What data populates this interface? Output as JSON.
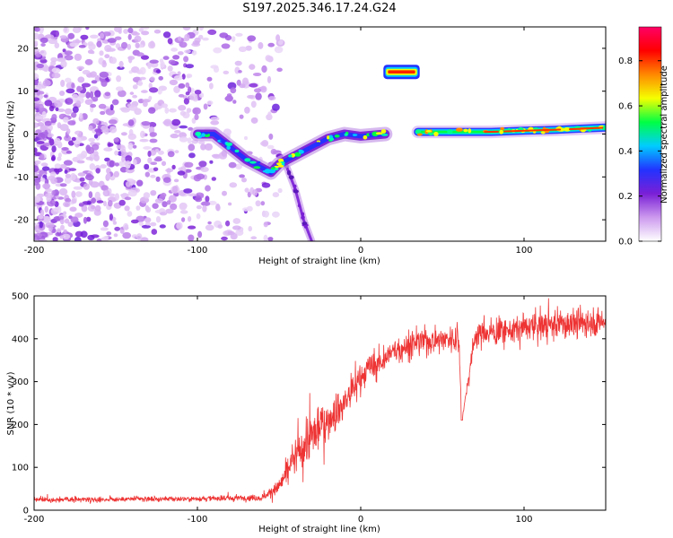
{
  "title": "S197.2025.346.17.24.G24",
  "chart_data": [
    {
      "type": "heatmap",
      "title": "S197.2025.346.17.24.G24",
      "xlabel": "Height of straight line (km)",
      "ylabel": "Frequency (Hz)",
      "xlim": [
        -200,
        150
      ],
      "ylim": [
        -25,
        25
      ],
      "xticks": [
        -200,
        -100,
        0,
        100
      ],
      "yticks": [
        -20,
        -10,
        0,
        10,
        20
      ],
      "colorbar": {
        "label": "Normalized spectral amplitude",
        "range": [
          0,
          0.95
        ],
        "ticks": [
          0.0,
          0.2,
          0.4,
          0.6,
          0.8
        ],
        "tick_labels": [
          "0.0",
          "0.2",
          "0.4",
          "0.6",
          "0.8"
        ],
        "colormap": [
          "#ffffff",
          "#cc99ee",
          "#7a1fd6",
          "#2233ff",
          "#00ccff",
          "#00ff44",
          "#f5ff00",
          "#ff8800",
          "#ff0000",
          "#ff0066"
        ]
      },
      "features": [
        {
          "name": "noise-region",
          "x_range": [
            -200,
            -60
          ],
          "f_range": [
            -25,
            25
          ],
          "amplitude": 0.15
        },
        {
          "name": "main-trace",
          "points": [
            [
              -100,
              0
            ],
            [
              -90,
              0
            ],
            [
              -80,
              -3
            ],
            [
              -70,
              -6
            ],
            [
              -60,
              -8
            ],
            [
              -55,
              -9
            ],
            [
              -50,
              -7
            ],
            [
              -45,
              -6
            ],
            [
              -40,
              -5
            ],
            [
              -30,
              -3
            ],
            [
              -20,
              -1
            ],
            [
              -10,
              0
            ],
            [
              0,
              -0.5
            ],
            [
              15,
              0
            ]
          ],
          "amplitude": 0.5
        },
        {
          "name": "secondary-branch",
          "points": [
            [
              -50,
              -5
            ],
            [
              -45,
              -8
            ],
            [
              -40,
              -13
            ],
            [
              -35,
              -20
            ],
            [
              -30,
              -25
            ]
          ],
          "amplitude": 0.3
        },
        {
          "name": "carrier-line",
          "points": [
            [
              35,
              0.5
            ],
            [
              60,
              0.5
            ],
            [
              80,
              0.5
            ],
            [
              100,
              0.8
            ],
            [
              120,
              1
            ],
            [
              150,
              1.5
            ]
          ],
          "amplitude": 0.85
        },
        {
          "name": "pilot-tone",
          "x_range": [
            15,
            35
          ],
          "frequency": 14.5,
          "amplitude": 0.9
        }
      ]
    },
    {
      "type": "line",
      "xlabel": "Height of straight line (km)",
      "ylabel": "SNR (10 * v/v)",
      "xlim": [
        -200,
        150
      ],
      "ylim": [
        0,
        500
      ],
      "xticks": [
        -200,
        -100,
        0,
        100
      ],
      "yticks": [
        0,
        100,
        200,
        300,
        400,
        500
      ],
      "color": "#ee3333",
      "series": [
        {
          "name": "SNR",
          "x": [
            -200,
            -180,
            -160,
            -140,
            -120,
            -100,
            -80,
            -60,
            -50,
            -45,
            -40,
            -35,
            -30,
            -25,
            -20,
            -15,
            -10,
            -5,
            0,
            5,
            10,
            15,
            20,
            30,
            40,
            50,
            60,
            62,
            70,
            80,
            90,
            100,
            110,
            120,
            130,
            140,
            150
          ],
          "values": [
            25,
            25,
            25,
            26,
            26,
            27,
            28,
            30,
            55,
            90,
            120,
            150,
            170,
            200,
            210,
            230,
            250,
            280,
            310,
            330,
            340,
            355,
            370,
            385,
            395,
            400,
            400,
            210,
            410,
            415,
            420,
            425,
            430,
            435,
            435,
            440,
            440
          ],
          "noise_amplitude": [
            8,
            8,
            8,
            8,
            8,
            8,
            8,
            10,
            25,
            40,
            60,
            70,
            80,
            80,
            60,
            60,
            60,
            55,
            50,
            45,
            40,
            40,
            40,
            40,
            40,
            40,
            40,
            0,
            40,
            40,
            40,
            40,
            45,
            45,
            45,
            45,
            45
          ]
        }
      ]
    }
  ]
}
